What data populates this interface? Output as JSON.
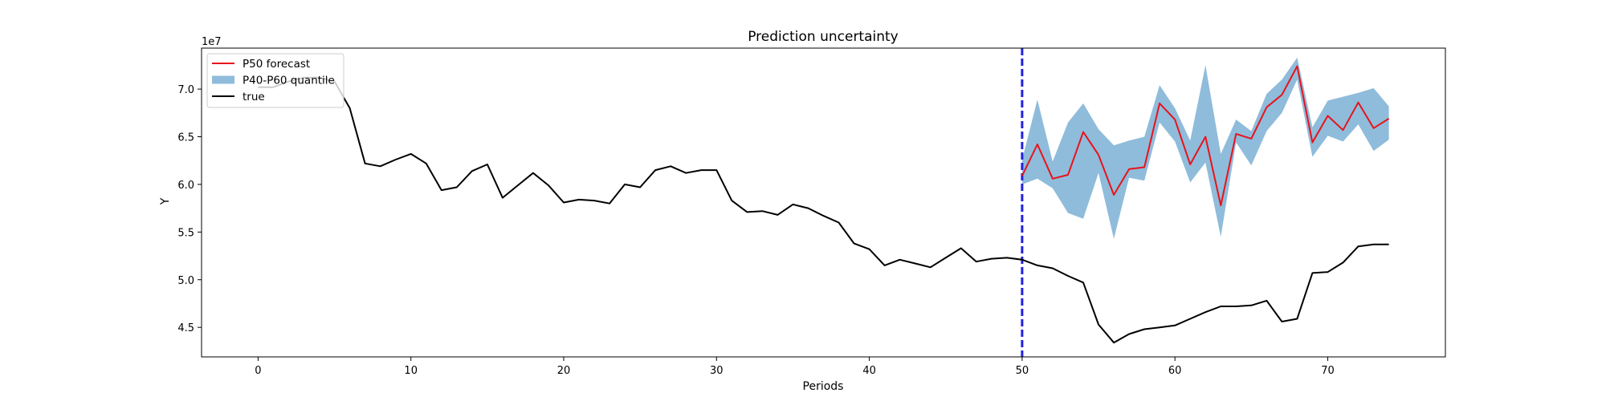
{
  "chart_data": {
    "type": "line",
    "title": "Prediction uncertainty",
    "xlabel": "Periods",
    "ylabel": "Y",
    "y_offset_label": "1e7",
    "xlim": [
      -3.7,
      77.7
    ],
    "ylim": [
      41900000,
      74300000
    ],
    "x_ticks": [
      0,
      10,
      20,
      30,
      40,
      50,
      60,
      70
    ],
    "y_ticks": [
      45000000,
      50000000,
      55000000,
      60000000,
      65000000,
      70000000
    ],
    "y_tick_labels": [
      "4.5",
      "5.0",
      "5.5",
      "6.0",
      "6.5",
      "7.0"
    ],
    "grid": false,
    "legend_position": "upper left",
    "vertical_line": {
      "x": 50,
      "style": "dashed",
      "color": "#2222dd"
    },
    "colors": {
      "forecast": "#e8131b",
      "band": "#8fbcdb",
      "true": "#000000"
    },
    "series": [
      {
        "name": "true",
        "x": [
          0,
          1,
          2,
          3,
          4,
          5,
          6,
          7,
          8,
          9,
          10,
          11,
          12,
          13,
          14,
          15,
          16,
          17,
          18,
          19,
          20,
          21,
          22,
          23,
          24,
          25,
          26,
          27,
          28,
          29,
          30,
          31,
          32,
          33,
          34,
          35,
          36,
          37,
          38,
          39,
          40,
          41,
          42,
          43,
          44,
          45,
          46,
          47,
          48,
          49,
          50,
          51,
          52,
          53,
          54,
          55,
          56,
          57,
          58,
          59,
          60,
          61,
          62,
          63,
          64,
          65,
          66,
          67,
          68,
          69,
          70,
          71,
          72,
          73,
          74
        ],
        "y": [
          70200000,
          70200000,
          70800000,
          71200000,
          71200000,
          70800000,
          68000000,
          62200000,
          61900000,
          62600000,
          63200000,
          62200000,
          59400000,
          59700000,
          61400000,
          62100000,
          58600000,
          59900000,
          61200000,
          59900000,
          58100000,
          58400000,
          58300000,
          58000000,
          60000000,
          59700000,
          61500000,
          61900000,
          61200000,
          61500000,
          61500000,
          58300000,
          57100000,
          57200000,
          56800000,
          57900000,
          57500000,
          56700000,
          56000000,
          53800000,
          53200000,
          51500000,
          52100000,
          51700000,
          51300000,
          52300000,
          53300000,
          51900000,
          52200000,
          52300000,
          52100000,
          51500000,
          51200000,
          50400000,
          49700000,
          45300000,
          43400000,
          44300000,
          44800000,
          45000000,
          45200000,
          45900000,
          46600000,
          47200000,
          47200000,
          47300000,
          47800000,
          45600000,
          45900000,
          50700000,
          50800000,
          51800000,
          53500000,
          53700000,
          53700000
        ]
      },
      {
        "name": "P50 forecast",
        "x": [
          50,
          51,
          52,
          53,
          54,
          55,
          56,
          57,
          58,
          59,
          60,
          61,
          62,
          63,
          64,
          65,
          66,
          67,
          68,
          69,
          70,
          71,
          72,
          73,
          74
        ],
        "y": [
          60900000,
          64200000,
          60600000,
          61000000,
          65500000,
          63100000,
          58900000,
          61600000,
          61800000,
          68500000,
          66800000,
          62100000,
          65000000,
          57800000,
          65300000,
          64800000,
          68100000,
          69400000,
          72400000,
          64400000,
          67200000,
          65700000,
          68600000,
          65900000,
          66900000
        ]
      },
      {
        "name": "P40-P60 quantile",
        "x": [
          50,
          51,
          52,
          53,
          54,
          55,
          56,
          57,
          58,
          59,
          60,
          61,
          62,
          63,
          64,
          65,
          66,
          67,
          68,
          69,
          70,
          71,
          72,
          73,
          74
        ],
        "lower": [
          60000000,
          60600000,
          59600000,
          57000000,
          56400000,
          61200000,
          54300000,
          60700000,
          60400000,
          66500000,
          64500000,
          60200000,
          62300000,
          54500000,
          64400000,
          62000000,
          65600000,
          67500000,
          71000000,
          62900000,
          65100000,
          64500000,
          66300000,
          63500000,
          64700000
        ],
        "upper": [
          62600000,
          68900000,
          62400000,
          66500000,
          68500000,
          65800000,
          64100000,
          64600000,
          65000000,
          70400000,
          68000000,
          64600000,
          72500000,
          63200000,
          66800000,
          65600000,
          69500000,
          71000000,
          73300000,
          66000000,
          68800000,
          69200000,
          69600000,
          70100000,
          68200000
        ]
      }
    ]
  }
}
